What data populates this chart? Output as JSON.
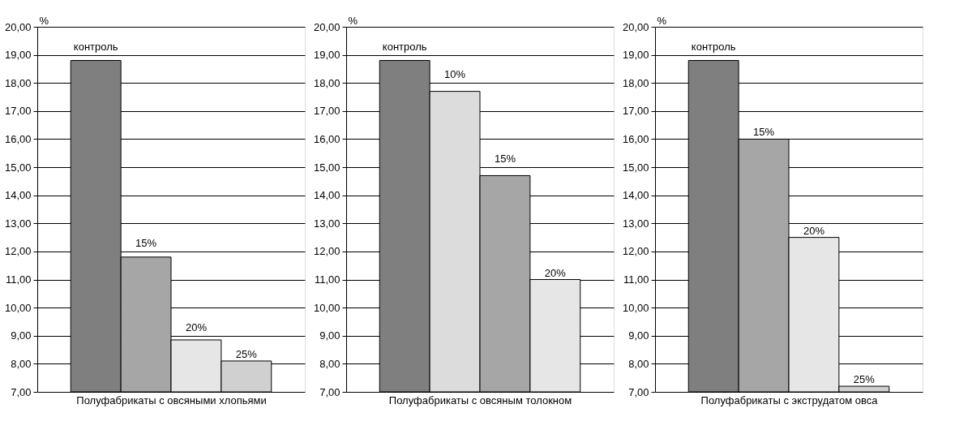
{
  "chart_data": [
    {
      "type": "bar",
      "xlabel": "Полуфабрикаты с овсяными хлопьями",
      "ylabel": "%",
      "categories": [
        null
      ],
      "series": [
        {
          "name": "контроль",
          "color": "#7f7f7f",
          "values": [
            18.8
          ]
        },
        {
          "name": "15%",
          "color": "#a6a6a6",
          "values": [
            11.8
          ]
        },
        {
          "name": "20%",
          "color": "#e6e6e6",
          "values": [
            8.85
          ]
        },
        {
          "name": "25%",
          "color": "#d0d0d0",
          "values": [
            8.1
          ]
        }
      ],
      "ylim": [
        7,
        20
      ],
      "yticks": [
        {
          "value": 7,
          "label": "7,00"
        },
        {
          "value": 8,
          "label": "8,00"
        },
        {
          "value": 9,
          "label": "9,00"
        },
        {
          "value": 10,
          "label": "10,00"
        },
        {
          "value": 11,
          "label": "11,00"
        },
        {
          "value": 12,
          "label": "12,00"
        },
        {
          "value": 13,
          "label": "13,00"
        },
        {
          "value": 14,
          "label": "14,00"
        },
        {
          "value": 15,
          "label": "15,00"
        },
        {
          "value": 16,
          "label": "16,00"
        },
        {
          "value": 17,
          "label": "17,00"
        },
        {
          "value": 18,
          "label": "18,00"
        },
        {
          "value": 19,
          "label": "19,00"
        },
        {
          "value": 20,
          "label": "20,00"
        }
      ],
      "grid": "y"
    },
    {
      "type": "bar",
      "xlabel": "Полуфабрикаты с овсяным толокном",
      "ylabel": "%",
      "categories": [
        null
      ],
      "series": [
        {
          "name": "контроль",
          "color": "#7f7f7f",
          "values": [
            18.8
          ]
        },
        {
          "name": "10%",
          "color": "#dcdcdc",
          "values": [
            17.7
          ]
        },
        {
          "name": "15%",
          "color": "#a6a6a6",
          "values": [
            14.7
          ]
        },
        {
          "name": "20%",
          "color": "#e6e6e6",
          "values": [
            11.0
          ]
        }
      ],
      "ylim": [
        7,
        20
      ],
      "yticks": [
        {
          "value": 7,
          "label": "7,00"
        },
        {
          "value": 8,
          "label": "8,00"
        },
        {
          "value": 9,
          "label": "9,00"
        },
        {
          "value": 10,
          "label": "10,00"
        },
        {
          "value": 11,
          "label": "11,00"
        },
        {
          "value": 12,
          "label": "12,00"
        },
        {
          "value": 13,
          "label": "13,00"
        },
        {
          "value": 14,
          "label": "14,00"
        },
        {
          "value": 15,
          "label": "15,00"
        },
        {
          "value": 16,
          "label": "16,00"
        },
        {
          "value": 17,
          "label": "17,00"
        },
        {
          "value": 18,
          "label": "18,00"
        },
        {
          "value": 19,
          "label": "19,00"
        },
        {
          "value": 20,
          "label": "20,00"
        }
      ],
      "grid": "y"
    },
    {
      "type": "bar",
      "xlabel": "Полуфабрикаты с экструдатом овса",
      "ylabel": "%",
      "categories": [
        null
      ],
      "series": [
        {
          "name": "контроль",
          "color": "#7f7f7f",
          "values": [
            18.8
          ]
        },
        {
          "name": "15%",
          "color": "#a6a6a6",
          "values": [
            16.0
          ]
        },
        {
          "name": "20%",
          "color": "#e6e6e6",
          "values": [
            12.5
          ]
        },
        {
          "name": "25%",
          "color": "#d0d0d0",
          "values": [
            7.2
          ]
        }
      ],
      "ylim": [
        7,
        20
      ],
      "yticks": [
        {
          "value": 7,
          "label": "7,00"
        },
        {
          "value": 8,
          "label": "8,00"
        },
        {
          "value": 9,
          "label": "9,00"
        },
        {
          "value": 10,
          "label": "10,00"
        },
        {
          "value": 11,
          "label": "11,00"
        },
        {
          "value": 12,
          "label": "12,00"
        },
        {
          "value": 13,
          "label": "13,00"
        },
        {
          "value": 14,
          "label": "14,00"
        },
        {
          "value": 15,
          "label": "15,00"
        },
        {
          "value": 16,
          "label": "16,00"
        },
        {
          "value": 17,
          "label": "17,00"
        },
        {
          "value": 18,
          "label": "18,00"
        },
        {
          "value": 19,
          "label": "19,00"
        },
        {
          "value": 20,
          "label": "20,00"
        }
      ],
      "grid": "y"
    }
  ]
}
